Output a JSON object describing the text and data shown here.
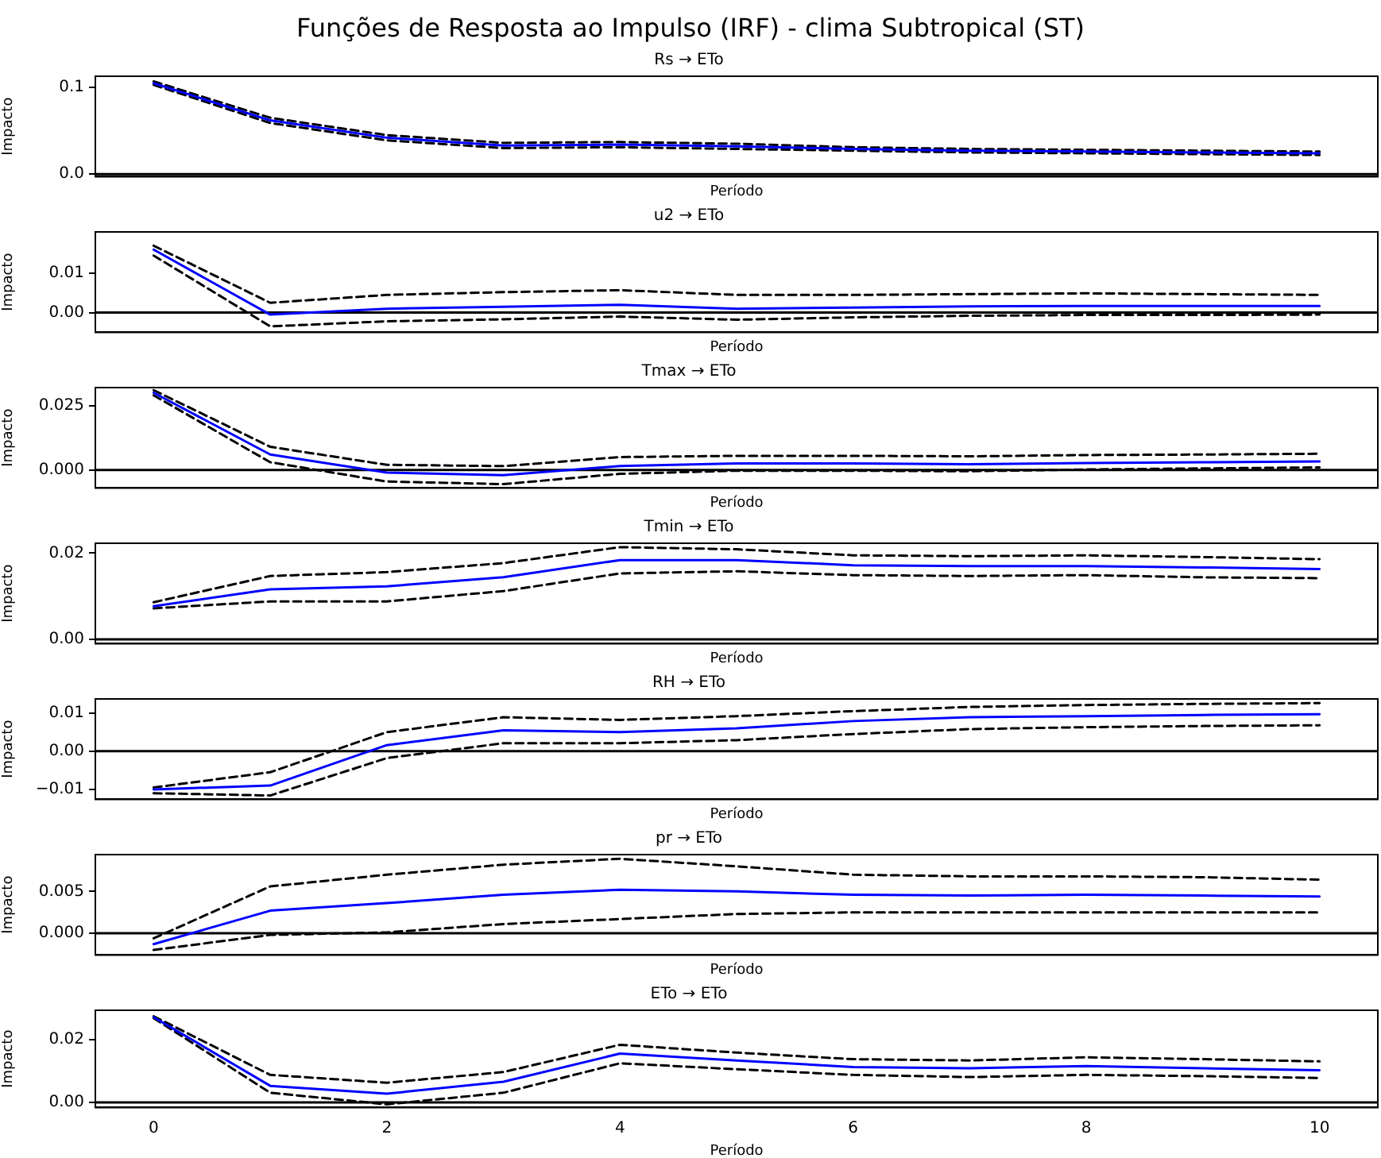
{
  "chart_data": [
    {
      "type": "line",
      "title": "Funções de Resposta ao Impulso (IRF) - clima Subtropical (ST)",
      "subtitle": "Rs → ETo",
      "xlabel": "Período",
      "ylabel": "Impacto",
      "x": [
        0,
        1,
        2,
        3,
        4,
        5,
        6,
        7,
        8,
        9,
        10
      ],
      "xlim": [
        -0.5,
        10.5
      ],
      "xticks": [
        0,
        2,
        4,
        6,
        8,
        10
      ],
      "ylim": [
        -0.003,
        0.113
      ],
      "yticks": [
        {
          "value": 0,
          "label": "0.0"
        },
        0.1
      ],
      "tick_labels": "y",
      "grid": false,
      "legend": false,
      "marker": "none",
      "series": [
        {
          "color": "#0000ff",
          "line_style": "solid",
          "values": [
            0.105,
            0.062,
            0.042,
            0.033,
            0.034,
            0.032,
            0.029,
            0.027,
            0.026,
            0.025,
            0.024
          ]
        },
        {
          "color": "#000000",
          "line_style": "dashed",
          "values": [
            0.107,
            0.065,
            0.045,
            0.036,
            0.037,
            0.035,
            0.031,
            0.029,
            0.028,
            0.027,
            0.026
          ]
        },
        {
          "color": "#000000",
          "line_style": "dashed",
          "values": [
            0.103,
            0.059,
            0.039,
            0.03,
            0.031,
            0.029,
            0.027,
            0.025,
            0.024,
            0.023,
            0.022
          ]
        }
      ],
      "ref_lines": [
        {
          "axis": "y",
          "value": 0,
          "color": "#000000"
        }
      ]
    },
    {
      "type": "line",
      "title": "u2 → ETo",
      "xlabel": "Período",
      "ylabel": "Impacto",
      "x": [
        0,
        1,
        2,
        3,
        4,
        5,
        6,
        7,
        8,
        9,
        10
      ],
      "xlim": [
        -0.5,
        10.5
      ],
      "xticks": [
        0,
        2,
        4,
        6,
        8,
        10
      ],
      "ylim": [
        -0.005,
        0.0205
      ],
      "yticks": [
        {
          "value": 0,
          "label": "0.00"
        },
        {
          "value": 0.01,
          "label": "0.01"
        }
      ],
      "tick_labels": "y",
      "grid": false,
      "legend": false,
      "marker": "none",
      "series": [
        {
          "color": "#0000ff",
          "line_style": "solid",
          "values": [
            0.016,
            -0.0005,
            0.001,
            0.0015,
            0.002,
            0.001,
            0.0013,
            0.0016,
            0.0017,
            0.0017,
            0.0017
          ]
        },
        {
          "color": "#000000",
          "line_style": "dashed",
          "values": [
            0.017,
            0.0025,
            0.0045,
            0.0052,
            0.0057,
            0.0045,
            0.0045,
            0.0047,
            0.0049,
            0.0047,
            0.0045
          ]
        },
        {
          "color": "#000000",
          "line_style": "dashed",
          "values": [
            0.0145,
            -0.0035,
            -0.0022,
            -0.0017,
            -0.001,
            -0.0018,
            -0.0012,
            -0.0008,
            -0.0006,
            -0.0006,
            -0.0005
          ]
        }
      ],
      "ref_lines": [
        {
          "axis": "y",
          "value": 0,
          "color": "#000000"
        }
      ]
    },
    {
      "type": "line",
      "title": "Tmax → ETo",
      "xlabel": "Período",
      "ylabel": "Impacto",
      "x": [
        0,
        1,
        2,
        3,
        4,
        5,
        6,
        7,
        8,
        9,
        10
      ],
      "xlim": [
        -0.5,
        10.5
      ],
      "xticks": [
        0,
        2,
        4,
        6,
        8,
        10
      ],
      "ylim": [
        -0.007,
        0.032
      ],
      "yticks": [
        {
          "value": 0,
          "label": "0.000"
        },
        {
          "value": 0.025,
          "label": "0.025"
        }
      ],
      "tick_labels": "y",
      "grid": false,
      "legend": false,
      "marker": "none",
      "series": [
        {
          "color": "#0000ff",
          "line_style": "solid",
          "values": [
            0.03,
            0.006,
            -0.001,
            -0.002,
            0.0015,
            0.0025,
            0.0025,
            0.0022,
            0.0027,
            0.003,
            0.0033
          ]
        },
        {
          "color": "#000000",
          "line_style": "dashed",
          "values": [
            0.031,
            0.009,
            0.002,
            0.0015,
            0.005,
            0.0055,
            0.0055,
            0.0053,
            0.0058,
            0.006,
            0.0063
          ]
        },
        {
          "color": "#000000",
          "line_style": "dashed",
          "values": [
            0.029,
            0.003,
            -0.0045,
            -0.0055,
            -0.0015,
            -0.0003,
            -0.0003,
            -0.0005,
            0.0002,
            0.0006,
            0.001
          ]
        }
      ],
      "ref_lines": [
        {
          "axis": "y",
          "value": 0,
          "color": "#000000"
        }
      ]
    },
    {
      "type": "line",
      "title": "Tmin → ETo",
      "xlabel": "Período",
      "ylabel": "Impacto",
      "x": [
        0,
        1,
        2,
        3,
        4,
        5,
        6,
        7,
        8,
        9,
        10
      ],
      "xlim": [
        -0.5,
        10.5
      ],
      "xticks": [
        0,
        2,
        4,
        6,
        8,
        10
      ],
      "ylim": [
        -0.001,
        0.0223
      ],
      "yticks": [
        {
          "value": 0,
          "label": "0.00"
        },
        {
          "value": 0.02,
          "label": "0.02"
        }
      ],
      "tick_labels": "y",
      "grid": false,
      "legend": false,
      "marker": "none",
      "series": [
        {
          "color": "#0000ff",
          "line_style": "solid",
          "values": [
            0.0077,
            0.0116,
            0.0123,
            0.0144,
            0.0184,
            0.0184,
            0.0172,
            0.017,
            0.017,
            0.0167,
            0.0163
          ]
        },
        {
          "color": "#000000",
          "line_style": "dashed",
          "values": [
            0.0086,
            0.0147,
            0.0156,
            0.0177,
            0.0214,
            0.0209,
            0.0195,
            0.0193,
            0.0195,
            0.0191,
            0.0186
          ]
        },
        {
          "color": "#000000",
          "line_style": "dashed",
          "values": [
            0.0072,
            0.0088,
            0.0088,
            0.0112,
            0.0153,
            0.0158,
            0.0149,
            0.0147,
            0.0149,
            0.0144,
            0.0142
          ]
        }
      ],
      "ref_lines": [
        {
          "axis": "y",
          "value": 0,
          "color": "#000000"
        }
      ]
    },
    {
      "type": "line",
      "title": "RH → ETo",
      "xlabel": "Período",
      "ylabel": "Impacto",
      "x": [
        0,
        1,
        2,
        3,
        4,
        5,
        6,
        7,
        8,
        9,
        10
      ],
      "xlim": [
        -0.5,
        10.5
      ],
      "xticks": [
        0,
        2,
        4,
        6,
        8,
        10
      ],
      "ylim": [
        -0.0126,
        0.0137
      ],
      "yticks": [
        {
          "value": -0.01,
          "label": "−0.01"
        },
        {
          "value": 0,
          "label": "0.00"
        },
        {
          "value": 0.01,
          "label": "0.01"
        }
      ],
      "tick_labels": "y",
      "grid": false,
      "legend": false,
      "marker": "none",
      "series": [
        {
          "color": "#0000ff",
          "line_style": "solid",
          "values": [
            -0.01,
            -0.009,
            0.0016,
            0.0055,
            0.005,
            0.006,
            0.0079,
            0.0089,
            0.0092,
            0.0095,
            0.0097
          ]
        },
        {
          "color": "#000000",
          "line_style": "dashed",
          "values": [
            -0.0095,
            -0.0055,
            0.005,
            0.0089,
            0.0082,
            0.0092,
            0.0105,
            0.0116,
            0.0121,
            0.0124,
            0.0126
          ]
        },
        {
          "color": "#000000",
          "line_style": "dashed",
          "values": [
            -0.011,
            -0.0116,
            -0.0018,
            0.0021,
            0.0021,
            0.0029,
            0.0045,
            0.0058,
            0.0063,
            0.0066,
            0.0068
          ]
        }
      ],
      "ref_lines": [
        {
          "axis": "y",
          "value": 0,
          "color": "#000000"
        }
      ]
    },
    {
      "type": "line",
      "title": "pr → ETo",
      "xlabel": "Período",
      "ylabel": "Impacto",
      "x": [
        0,
        1,
        2,
        3,
        4,
        5,
        6,
        7,
        8,
        9,
        10
      ],
      "xlim": [
        -0.5,
        10.5
      ],
      "xticks": [
        0,
        2,
        4,
        6,
        8,
        10
      ],
      "ylim": [
        -0.0026,
        0.0094
      ],
      "yticks": [
        {
          "value": 0,
          "label": "0.000"
        },
        {
          "value": 0.005,
          "label": "0.005"
        }
      ],
      "tick_labels": "y",
      "grid": false,
      "legend": false,
      "marker": "none",
      "series": [
        {
          "color": "#0000ff",
          "line_style": "solid",
          "values": [
            -0.0013,
            0.0027,
            0.0036,
            0.0046,
            0.0052,
            0.005,
            0.0046,
            0.0045,
            0.0046,
            0.0045,
            0.0044
          ]
        },
        {
          "color": "#000000",
          "line_style": "dashed",
          "values": [
            -0.0006,
            0.0056,
            0.007,
            0.0082,
            0.0089,
            0.008,
            0.007,
            0.0068,
            0.0068,
            0.0067,
            0.0064
          ]
        },
        {
          "color": "#000000",
          "line_style": "dashed",
          "values": [
            -0.002,
            -0.0002,
            0.0001,
            0.0011,
            0.0017,
            0.0023,
            0.0025,
            0.0025,
            0.0025,
            0.0025,
            0.0025
          ]
        }
      ],
      "ref_lines": [
        {
          "axis": "y",
          "value": 0,
          "color": "#000000"
        }
      ]
    },
    {
      "type": "line",
      "title": "ETo → ETo",
      "xlabel": "Período",
      "ylabel": "Impacto",
      "x": [
        0,
        1,
        2,
        3,
        4,
        5,
        6,
        7,
        8,
        9,
        10
      ],
      "xlim": [
        -0.5,
        10.5
      ],
      "xticks": [
        0,
        2,
        4,
        6,
        8,
        10
      ],
      "ylim": [
        -0.0016,
        0.0294
      ],
      "yticks": [
        {
          "value": 0,
          "label": "0.00"
        },
        {
          "value": 0.02,
          "label": "0.02"
        }
      ],
      "grid": false,
      "legend": false,
      "marker": "none",
      "series": [
        {
          "color": "#0000ff",
          "line_style": "solid",
          "values": [
            0.0272,
            0.0053,
            0.0028,
            0.0066,
            0.0156,
            0.0134,
            0.0113,
            0.0109,
            0.0116,
            0.0109,
            0.0103
          ]
        },
        {
          "color": "#000000",
          "line_style": "dashed",
          "values": [
            0.0275,
            0.0088,
            0.0063,
            0.0097,
            0.0184,
            0.0159,
            0.0138,
            0.0134,
            0.0144,
            0.0138,
            0.0131
          ]
        },
        {
          "color": "#000000",
          "line_style": "dashed",
          "values": [
            0.0269,
            0.0031,
            -0.0006,
            0.0031,
            0.0125,
            0.0106,
            0.0088,
            0.0081,
            0.0088,
            0.0084,
            0.0078
          ]
        }
      ],
      "ref_lines": [
        {
          "axis": "y",
          "value": 0,
          "color": "#000000"
        }
      ]
    }
  ]
}
